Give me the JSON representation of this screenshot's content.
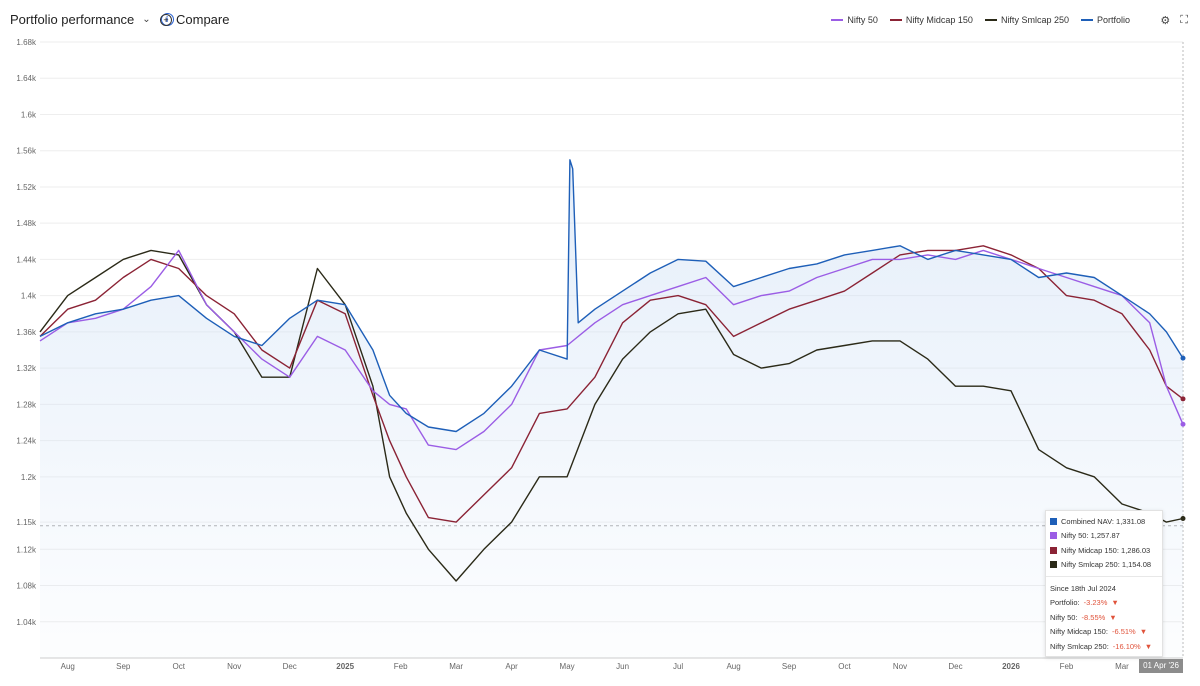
{
  "header": {
    "title": "Portfolio performance",
    "compare_label": "Compare"
  },
  "legend": [
    {
      "name": "Nifty 50",
      "color": "#9b5de5"
    },
    {
      "name": "Nifty Midcap 150",
      "color": "#8b2335"
    },
    {
      "name": "Nifty Smlcap 250",
      "color": "#2b2a18"
    },
    {
      "name": "Portfolio",
      "color": "#1e5fb8"
    }
  ],
  "tooltip": {
    "rows": [
      {
        "label": "Combined NAV: 1,331.08",
        "color": "#1e5fb8"
      },
      {
        "label": "Nifty 50: 1,257.87",
        "color": "#9b5de5"
      },
      {
        "label": "Nifty Midcap 150: 1,286.03",
        "color": "#8b2335"
      },
      {
        "label": "Nifty Smlcap 250: 1,154.08",
        "color": "#2b2a18"
      }
    ],
    "since": "Since 18th Jul 2024",
    "changes": [
      {
        "label": "Portfolio:",
        "value": "-3.23%"
      },
      {
        "label": "Nifty 50:",
        "value": "-8.55%"
      },
      {
        "label": "Nifty Midcap 150:",
        "value": "-6.51%"
      },
      {
        "label": "Nifty Smlcap 250:",
        "value": "-16.10%"
      }
    ]
  },
  "date_badge": "01 Apr '26",
  "chart_data": {
    "type": "line",
    "ylim": [
      1000,
      1680
    ],
    "y_ticks": [
      1040,
      1080,
      1120,
      1150,
      1200,
      1240,
      1280,
      1320,
      1360,
      1400,
      1440,
      1480,
      1520,
      1560,
      1600,
      1640,
      1680
    ],
    "y_tick_labels": [
      "1.04k",
      "1.08k",
      "1.12k",
      "1.15k",
      "1.2k",
      "1.24k",
      "1.28k",
      "1.32k",
      "1.36k",
      "1.4k",
      "1.44k",
      "1.48k",
      "1.52k",
      "1.56k",
      "1.6k",
      "1.64k",
      "1.68k"
    ],
    "x_range": [
      0,
      20.6
    ],
    "x_ticks": [
      {
        "x": 0.5,
        "label": "Aug"
      },
      {
        "x": 1.5,
        "label": "Sep"
      },
      {
        "x": 2.5,
        "label": "Oct"
      },
      {
        "x": 3.5,
        "label": "Nov"
      },
      {
        "x": 4.5,
        "label": "Dec"
      },
      {
        "x": 5.5,
        "label": "2025"
      },
      {
        "x": 6.5,
        "label": "Feb"
      },
      {
        "x": 7.5,
        "label": "Mar"
      },
      {
        "x": 8.5,
        "label": "Apr"
      },
      {
        "x": 9.5,
        "label": "May"
      },
      {
        "x": 10.5,
        "label": "Jun"
      },
      {
        "x": 11.5,
        "label": "Jul"
      },
      {
        "x": 12.5,
        "label": "Aug"
      },
      {
        "x": 13.5,
        "label": "Sep"
      },
      {
        "x": 14.5,
        "label": "Oct"
      },
      {
        "x": 15.5,
        "label": "Nov"
      },
      {
        "x": 16.5,
        "label": "Dec"
      },
      {
        "x": 17.5,
        "label": "2026"
      },
      {
        "x": 18.5,
        "label": "Feb"
      },
      {
        "x": 19.5,
        "label": "Mar"
      }
    ],
    "reference_line": 1146,
    "grid": true,
    "series": [
      {
        "name": "Portfolio",
        "color": "#1e5fb8",
        "x": [
          0,
          0.5,
          1,
          1.5,
          2,
          2.5,
          3,
          3.5,
          4,
          4.5,
          5,
          5.5,
          6,
          6.3,
          6.6,
          7,
          7.5,
          8,
          8.5,
          9,
          9.5,
          9.55,
          9.6,
          9.7,
          10,
          10.5,
          11,
          11.5,
          12,
          12.5,
          13,
          13.5,
          14,
          14.5,
          15,
          15.5,
          16,
          16.5,
          17,
          17.5,
          18,
          18.5,
          19,
          19.5,
          20,
          20.3,
          20.6
        ],
        "y": [
          1355,
          1370,
          1380,
          1385,
          1395,
          1400,
          1375,
          1355,
          1345,
          1375,
          1395,
          1390,
          1340,
          1290,
          1270,
          1255,
          1250,
          1270,
          1300,
          1340,
          1330,
          1550,
          1540,
          1370,
          1385,
          1405,
          1425,
          1440,
          1438,
          1410,
          1420,
          1430,
          1435,
          1445,
          1450,
          1455,
          1440,
          1450,
          1445,
          1440,
          1420,
          1425,
          1420,
          1400,
          1380,
          1360,
          1331
        ]
      },
      {
        "name": "Nifty 50",
        "color": "#9b5de5",
        "x": [
          0,
          0.5,
          1,
          1.5,
          2,
          2.5,
          3,
          3.5,
          4,
          4.5,
          5,
          5.5,
          6,
          6.3,
          6.6,
          7,
          7.5,
          8,
          8.5,
          9,
          9.5,
          10,
          10.5,
          11,
          11.5,
          12,
          12.5,
          13,
          13.5,
          14,
          14.5,
          15,
          15.5,
          16,
          16.5,
          17,
          17.5,
          18,
          18.5,
          19,
          19.5,
          20,
          20.3,
          20.6
        ],
        "y": [
          1350,
          1370,
          1375,
          1385,
          1410,
          1450,
          1390,
          1360,
          1330,
          1310,
          1355,
          1340,
          1295,
          1280,
          1275,
          1235,
          1230,
          1250,
          1280,
          1340,
          1345,
          1370,
          1390,
          1400,
          1410,
          1420,
          1390,
          1400,
          1405,
          1420,
          1430,
          1440,
          1440,
          1445,
          1440,
          1450,
          1440,
          1430,
          1420,
          1410,
          1400,
          1370,
          1300,
          1258
        ]
      },
      {
        "name": "Nifty Midcap 150",
        "color": "#8b2335",
        "x": [
          0,
          0.5,
          1,
          1.5,
          2,
          2.5,
          3,
          3.5,
          4,
          4.5,
          5,
          5.5,
          6,
          6.3,
          6.6,
          7,
          7.5,
          8,
          8.5,
          9,
          9.5,
          10,
          10.5,
          11,
          11.5,
          12,
          12.5,
          13,
          13.5,
          14,
          14.5,
          15,
          15.5,
          16,
          16.5,
          17,
          17.5,
          18,
          18.5,
          19,
          19.5,
          20,
          20.3,
          20.6
        ],
        "y": [
          1355,
          1385,
          1395,
          1420,
          1440,
          1430,
          1400,
          1380,
          1340,
          1320,
          1395,
          1380,
          1290,
          1240,
          1200,
          1155,
          1150,
          1180,
          1210,
          1270,
          1275,
          1310,
          1370,
          1395,
          1400,
          1390,
          1355,
          1370,
          1385,
          1395,
          1405,
          1425,
          1445,
          1450,
          1450,
          1455,
          1445,
          1430,
          1400,
          1395,
          1380,
          1340,
          1300,
          1286
        ]
      },
      {
        "name": "Nifty Smlcap 250",
        "color": "#2b2a18",
        "x": [
          0,
          0.5,
          1,
          1.5,
          2,
          2.5,
          3,
          3.5,
          4,
          4.5,
          5,
          5.5,
          6,
          6.3,
          6.6,
          7,
          7.5,
          8,
          8.5,
          9,
          9.5,
          10,
          10.5,
          11,
          11.5,
          12,
          12.5,
          13,
          13.5,
          14,
          14.5,
          15,
          15.5,
          16,
          16.5,
          17,
          17.5,
          18,
          18.5,
          19,
          19.5,
          20,
          20.3,
          20.6
        ],
        "y": [
          1360,
          1400,
          1420,
          1440,
          1450,
          1445,
          1390,
          1360,
          1310,
          1310,
          1430,
          1390,
          1300,
          1200,
          1160,
          1120,
          1085,
          1120,
          1150,
          1200,
          1200,
          1280,
          1330,
          1360,
          1380,
          1385,
          1335,
          1320,
          1325,
          1340,
          1345,
          1350,
          1350,
          1330,
          1300,
          1300,
          1295,
          1230,
          1210,
          1200,
          1170,
          1160,
          1150,
          1154
        ]
      }
    ]
  }
}
